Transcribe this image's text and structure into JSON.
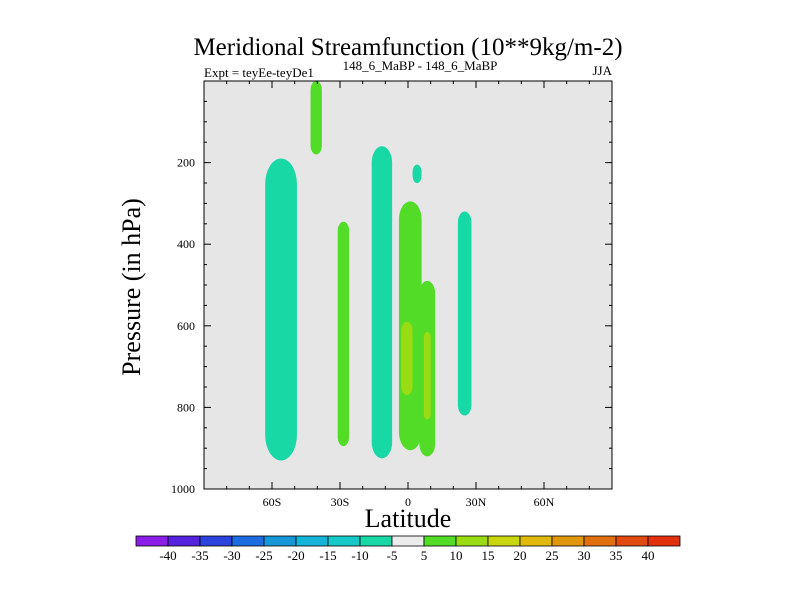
{
  "chart_data": {
    "type": "filled-contour",
    "title": "Meridional Streamfunction (10**9kg/m-2)",
    "subtitle_left": "Expt = teyEe-teyDe1",
    "subtitle_center": "148_6_MaBP - 148_6_MaBP",
    "season": "JJA",
    "xlabel": "Latitude",
    "ylabel": "Pressure (in hPa)",
    "xlim": [
      -90,
      90
    ],
    "ylim": [
      1000,
      0
    ],
    "x_ticks": [
      {
        "value": -60,
        "label": "60S"
      },
      {
        "value": -30,
        "label": "30S"
      },
      {
        "value": 0,
        "label": "0"
      },
      {
        "value": 30,
        "label": "30N"
      },
      {
        "value": 60,
        "label": "60N"
      }
    ],
    "y_ticks": [
      {
        "value": 200,
        "label": "200"
      },
      {
        "value": 400,
        "label": "400"
      },
      {
        "value": 600,
        "label": "600"
      },
      {
        "value": 800,
        "label": "800"
      },
      {
        "value": 1000,
        "label": "1000"
      }
    ],
    "colorbar": {
      "labels": [
        "-40",
        "-35",
        "-30",
        "-25",
        "-20",
        "-15",
        "-10",
        "-5",
        "5",
        "10",
        "15",
        "20",
        "25",
        "30",
        "35",
        "40"
      ],
      "colors": [
        "#8a1ee6",
        "#5522dd",
        "#2c44dd",
        "#1a6ce0",
        "#1596d6",
        "#13b4d8",
        "#16c8c8",
        "#18d8a6",
        "#ececec",
        "#52db27",
        "#9adc14",
        "#c8d60f",
        "#e0b90f",
        "#e0960d",
        "#e0700f",
        "#e04a10",
        "#e0300c"
      ]
    },
    "regions": [
      {
        "level": "-10 to -5",
        "color": "#18d8a6",
        "lat": [
          -63,
          -49
        ],
        "p": [
          190,
          930
        ]
      },
      {
        "level": "5 to 10",
        "color": "#52db27",
        "lat": [
          -43,
          -38
        ],
        "p": [
          0,
          180
        ]
      },
      {
        "level": "5 to 10",
        "color": "#52db27",
        "lat": [
          -31,
          -26
        ],
        "p": [
          345,
          895
        ]
      },
      {
        "level": "-10 to -5",
        "color": "#18d8a6",
        "lat": [
          -16,
          -7
        ],
        "p": [
          160,
          925
        ]
      },
      {
        "level": "5 to 10",
        "color": "#52db27",
        "lat": [
          -4,
          6
        ],
        "p": [
          295,
          905
        ]
      },
      {
        "level": "10 to 15",
        "color": "#9adc14",
        "lat": [
          -3,
          2
        ],
        "p": [
          590,
          770
        ]
      },
      {
        "level": "5 to 10",
        "color": "#52db27",
        "lat": [
          5,
          12
        ],
        "p": [
          490,
          920
        ]
      },
      {
        "level": "10 to 15",
        "color": "#9adc14",
        "lat": [
          7,
          10
        ],
        "p": [
          615,
          830
        ]
      },
      {
        "level": "-10 to -5",
        "color": "#18d8a6",
        "lat": [
          22,
          28
        ],
        "p": [
          320,
          820
        ]
      },
      {
        "level": "-10 to -5",
        "color": "#18d8a6",
        "lat": [
          2,
          6
        ],
        "p": [
          205,
          250
        ]
      }
    ]
  }
}
